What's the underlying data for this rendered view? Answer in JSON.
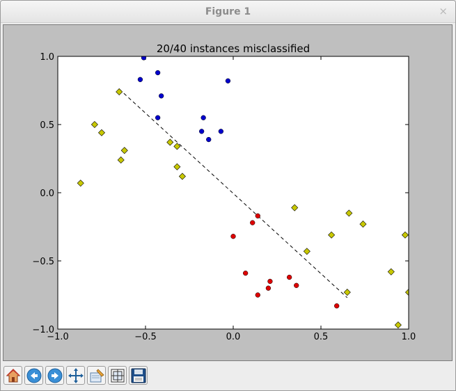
{
  "window": {
    "title": "Figure 1",
    "close_glyph": "×"
  },
  "toolbar": {
    "buttons": [
      {
        "name": "home-button",
        "icon": "home-icon"
      },
      {
        "name": "back-button",
        "icon": "arrow-left-icon"
      },
      {
        "name": "forward-button",
        "icon": "arrow-right-icon"
      },
      {
        "name": "pan-button",
        "icon": "pan-icon"
      },
      {
        "name": "zoom-button",
        "icon": "zoom-rect-icon"
      },
      {
        "name": "configure-subplots-button",
        "icon": "subplots-icon"
      },
      {
        "name": "save-button",
        "icon": "floppy-icon"
      }
    ]
  },
  "chart_data": {
    "type": "scatter",
    "title": "20/40 instances misclassified",
    "xlabel": "",
    "ylabel": "",
    "xlim": [
      -1.0,
      1.0
    ],
    "ylim": [
      -1.0,
      1.0
    ],
    "xticks": [
      "−1.0",
      "−0.5",
      "0.0",
      "0.5",
      "1.0"
    ],
    "yticks": [
      "1.0",
      "0.5",
      "0.0",
      "−0.5",
      "−1.0"
    ],
    "xtick_values": [
      -1.0,
      -0.5,
      0.0,
      0.5,
      1.0
    ],
    "ytick_values": [
      1.0,
      0.5,
      0.0,
      -0.5,
      -1.0
    ],
    "grid": false,
    "colors": {
      "blue": "#0000cc",
      "red": "#dd0000",
      "yellow": "#c8c800",
      "plot_bg": "#ffffff",
      "figure_bg": "#bfbfbf"
    },
    "series": [
      {
        "marker": "circle",
        "color": "#0000cc",
        "points": [
          [
            -0.51,
            0.99
          ],
          [
            -0.53,
            0.83
          ],
          [
            -0.43,
            0.88
          ],
          [
            -0.41,
            0.71
          ],
          [
            -0.43,
            0.55
          ],
          [
            -0.03,
            0.82
          ],
          [
            -0.17,
            0.55
          ],
          [
            -0.18,
            0.45
          ],
          [
            -0.14,
            0.39
          ],
          [
            -0.07,
            0.45
          ]
        ]
      },
      {
        "marker": "circle",
        "color": "#dd0000",
        "points": [
          [
            0.14,
            -0.17
          ],
          [
            0.11,
            -0.22
          ],
          [
            0.0,
            -0.32
          ],
          [
            0.07,
            -0.59
          ],
          [
            0.21,
            -0.65
          ],
          [
            0.32,
            -0.62
          ],
          [
            0.36,
            -0.68
          ],
          [
            0.2,
            -0.7
          ],
          [
            0.14,
            -0.75
          ],
          [
            0.59,
            -0.83
          ]
        ]
      },
      {
        "marker": "diamond",
        "color": "#c8c800",
        "points": [
          [
            -0.65,
            0.74
          ],
          [
            -0.79,
            0.5
          ],
          [
            -0.75,
            0.44
          ],
          [
            -0.62,
            0.31
          ],
          [
            -0.64,
            0.24
          ],
          [
            -0.87,
            0.07
          ],
          [
            -0.36,
            0.37
          ],
          [
            -0.32,
            0.34
          ],
          [
            -0.32,
            0.19
          ],
          [
            -0.29,
            0.12
          ],
          [
            0.35,
            -0.11
          ],
          [
            0.56,
            -0.31
          ],
          [
            0.66,
            -0.15
          ],
          [
            0.74,
            -0.23
          ],
          [
            0.42,
            -0.43
          ],
          [
            0.65,
            -0.73
          ],
          [
            0.9,
            -0.58
          ],
          [
            0.98,
            -0.31
          ],
          [
            1.0,
            -0.73
          ],
          [
            0.94,
            -0.97
          ]
        ]
      }
    ],
    "boundary_line": {
      "style": "dashed",
      "color": "#000000",
      "points": [
        [
          -0.65,
          0.76
        ],
        [
          0.65,
          -0.77
        ]
      ]
    }
  }
}
